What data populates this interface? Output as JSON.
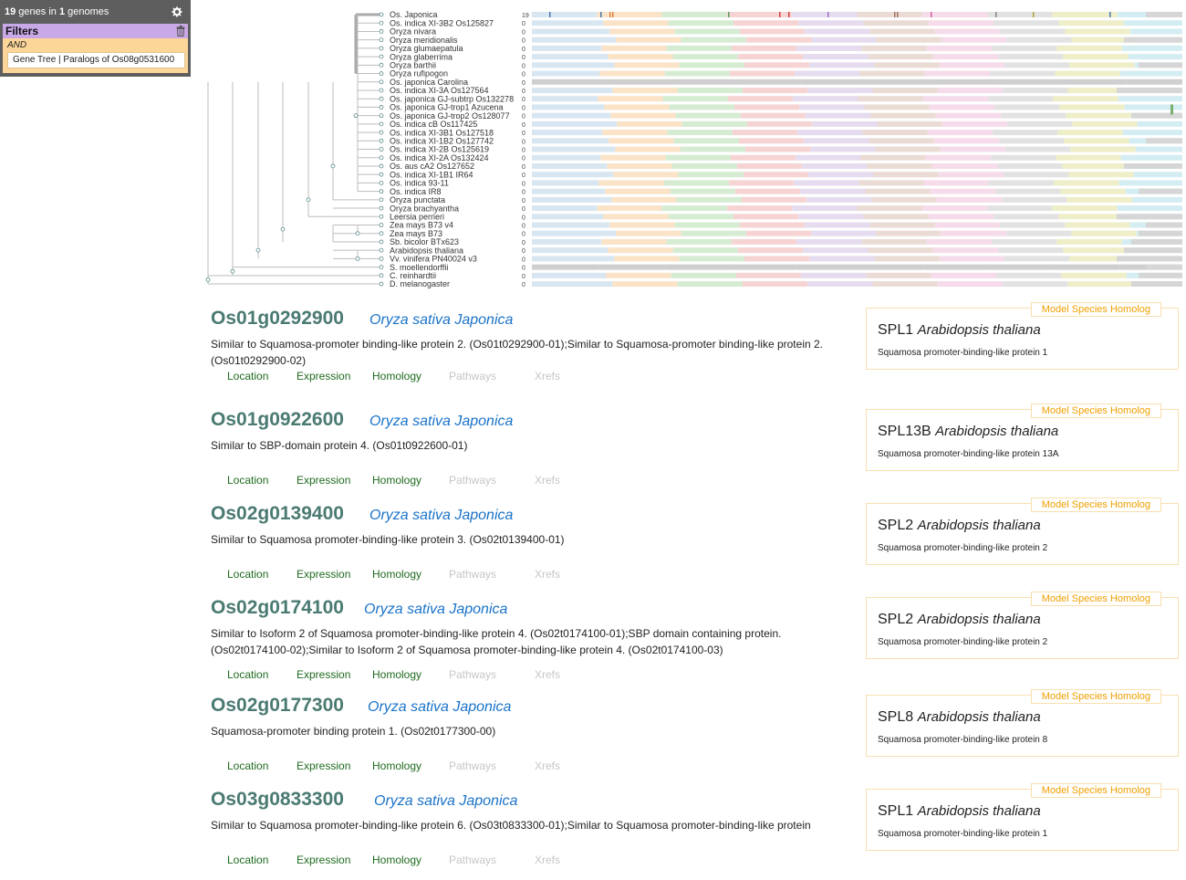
{
  "panel": {
    "gene_count": "19",
    "genes_in_text": " genes in ",
    "genome_count": "1",
    "genomes_text": " genomes",
    "filters_label": "Filters",
    "and_label": "AND",
    "filter_chip": "Gene Tree | Paralogs of Os08g0531600"
  },
  "tree": {
    "species": [
      {
        "name": "Os. Japonica",
        "count": "19"
      },
      {
        "name": "Os. indica XI-3B2 Os125827",
        "count": "0"
      },
      {
        "name": "Oryza nivara",
        "count": "0"
      },
      {
        "name": "Oryza meridionalis",
        "count": "0"
      },
      {
        "name": "Oryza glumaepatula",
        "count": "0"
      },
      {
        "name": "Oryza glaberrima",
        "count": "0"
      },
      {
        "name": "Oryza barthii",
        "count": "0"
      },
      {
        "name": "Oryza rufipogon",
        "count": "0"
      },
      {
        "name": "Os. japonica Carolina",
        "count": "0"
      },
      {
        "name": "Os. indica XI-3A Os127564",
        "count": "0"
      },
      {
        "name": "Os. japonica GJ-subtrp Os132278",
        "count": "0"
      },
      {
        "name": "Os. japonica GJ-trop1 Azucena",
        "count": "0"
      },
      {
        "name": "Os. japonica GJ-trop2 Os128077",
        "count": "0"
      },
      {
        "name": "Os. indica cB Os117425",
        "count": "0"
      },
      {
        "name": "Os. indica XI-3B1 Os127518",
        "count": "0"
      },
      {
        "name": "Os. indica XI-1B2 Os127742",
        "count": "0"
      },
      {
        "name": "Os. indica XI-2B Os125619",
        "count": "0"
      },
      {
        "name": "Os. indica XI-2A Os132424",
        "count": "0"
      },
      {
        "name": "Os. aus cA2 Os127652",
        "count": "0"
      },
      {
        "name": "Os. indica XI-1B1 IR64",
        "count": "0"
      },
      {
        "name": "Os. indica 93-11",
        "count": "0"
      },
      {
        "name": "Os. indica IR8",
        "count": "0"
      },
      {
        "name": "Oryza punctata",
        "count": "0"
      },
      {
        "name": "Oryza brachyantha",
        "count": "0"
      },
      {
        "name": "Leersia perrieri",
        "count": "0"
      },
      {
        "name": "Zea mays B73 v4",
        "count": "0"
      },
      {
        "name": "Zea mays B73",
        "count": "0"
      },
      {
        "name": "Sb. bicolor BTx623",
        "count": "0"
      },
      {
        "name": "Arabidopsis thaliana",
        "count": "0"
      },
      {
        "name": "Vv. vinifera PN40024 v3",
        "count": "0"
      },
      {
        "name": "S. moellendorffii",
        "count": "0"
      },
      {
        "name": "C. reinhardtii",
        "count": "0"
      },
      {
        "name": "D. melanogaster",
        "count": "0"
      }
    ],
    "band_colors": [
      "#d8e6f2",
      "#fbe3c8",
      "#d6ecd2",
      "#f7d4d4",
      "#e5dcef",
      "#eadcd4",
      "#f6dcea",
      "#e2e2e2",
      "#eeeec8",
      "#d4edf2"
    ]
  },
  "colors": {
    "gene_id": "#4a7a72",
    "species_link": "#1a73c9",
    "tab_active": "#1f6b1f",
    "tab_disabled": "#c6c6c6",
    "badge": "#f0a000",
    "filters_bg": "#c8a8e6",
    "and_bg": "#fcd599"
  },
  "tab_labels": [
    "Location",
    "Expression",
    "Homology",
    "Pathways",
    "Xrefs"
  ],
  "genes": [
    {
      "id": "Os01g0292900",
      "species": "Oryza sativa Japonica",
      "description": "Similar to Squamosa-promoter binding-like protein 2. (Os01t0292900-01);Similar to Squamosa-promoter binding-like protein 2. (Os01t0292900-02)",
      "homolog_badge": "Model Species Homolog",
      "homolog_name": "SPL1",
      "homolog_species": "Arabidopsis thaliana",
      "homolog_desc": "Squamosa promoter-binding-like protein 1"
    },
    {
      "id": "Os01g0922600",
      "species": "Oryza sativa Japonica",
      "description": "Similar to SBP-domain protein 4. (Os01t0922600-01)",
      "homolog_badge": "Model Species Homolog",
      "homolog_name": "SPL13B",
      "homolog_species": "Arabidopsis thaliana",
      "homolog_desc": "Squamosa promoter-binding-like protein 13A"
    },
    {
      "id": "Os02g0139400",
      "species": "Oryza sativa Japonica",
      "description": "Similar to Squamosa promoter-binding-like protein 3. (Os02t0139400-01)",
      "homolog_badge": "Model Species Homolog",
      "homolog_name": "SPL2",
      "homolog_species": "Arabidopsis thaliana",
      "homolog_desc": "Squamosa promoter-binding-like protein 2"
    },
    {
      "id": "Os02g0174100",
      "species": "Oryza sativa Japonica",
      "description": "Similar to Isoform 2 of Squamosa promoter-binding-like protein 4. (Os02t0174100-01);SBP domain containing protein. (Os02t0174100-02);Similar to Isoform 2 of Squamosa promoter-binding-like protein 4. (Os02t0174100-03)",
      "homolog_badge": "Model Species Homolog",
      "homolog_name": "SPL2",
      "homolog_species": "Arabidopsis thaliana",
      "homolog_desc": "Squamosa promoter-binding-like protein 2"
    },
    {
      "id": "Os02g0177300",
      "species": "Oryza sativa Japonica",
      "description": "Squamosa-promoter binding protein 1. (Os02t0177300-00)",
      "homolog_badge": "Model Species Homolog",
      "homolog_name": "SPL8",
      "homolog_species": "Arabidopsis thaliana",
      "homolog_desc": "Squamosa promoter-binding-like protein 8"
    },
    {
      "id": "Os03g0833300",
      "species": "Oryza sativa Japonica",
      "description": "Similar to Squamosa promoter-binding-like protein 6. (Os03t0833300-01);Similar to Squamosa promoter-binding-like protein",
      "homolog_badge": "Model Species Homolog",
      "homolog_name": "SPL1",
      "homolog_species": "Arabidopsis thaliana",
      "homolog_desc": "Squamosa promoter-binding-like protein 1"
    }
  ]
}
